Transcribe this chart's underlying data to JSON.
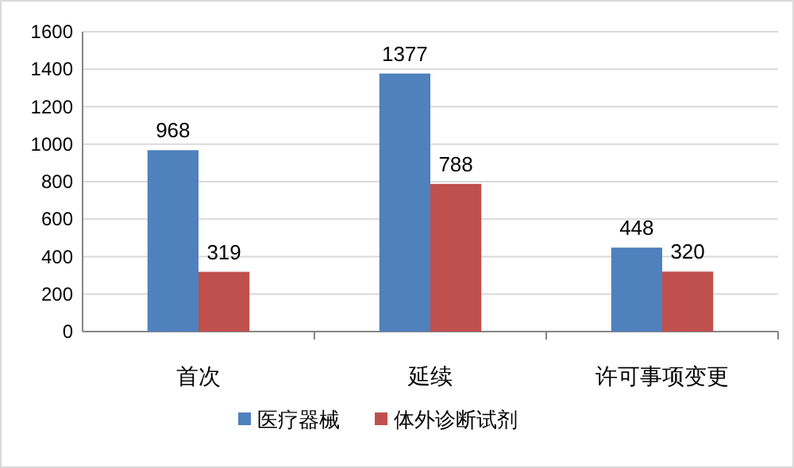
{
  "chart_data": {
    "type": "bar",
    "categories": [
      "首次",
      "延续",
      "许可事项变更"
    ],
    "series": [
      {
        "name": "医疗器械",
        "color": "#4f81bd",
        "values": [
          968,
          1377,
          448
        ]
      },
      {
        "name": "体外诊断试剂",
        "color": "#c0504d",
        "values": [
          319,
          788,
          320
        ]
      }
    ],
    "ylim": [
      0,
      1600
    ],
    "yticks": [
      0,
      200,
      400,
      600,
      800,
      1000,
      1200,
      1400,
      1600
    ],
    "grid": "y",
    "legend": "bottom",
    "data_labels": true
  }
}
